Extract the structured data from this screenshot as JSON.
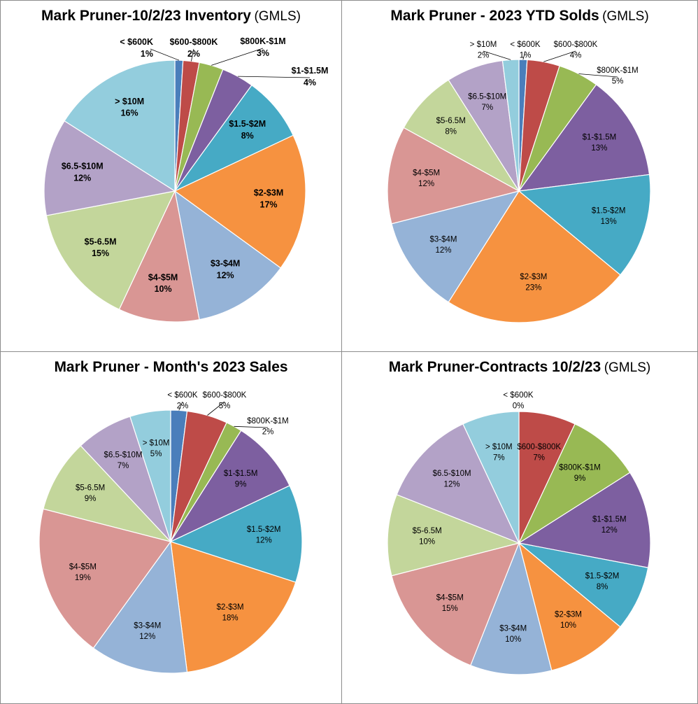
{
  "chart_data": [
    {
      "type": "pie",
      "title": "Mark Pruner-10/2/23 Inventory",
      "subtitle": "(GMLS)",
      "label_weight": "bold",
      "slices": [
        {
          "label": "< $600K",
          "value": 1,
          "pct": "1%",
          "color": "#4A7EBB"
        },
        {
          "label": "$600-$800K",
          "value": 2,
          "pct": "2%",
          "color": "#BE4B48"
        },
        {
          "label": "$800K-$1M",
          "value": 3,
          "pct": "3%",
          "color": "#98B954"
        },
        {
          "label": "$1-$1.5M",
          "value": 4,
          "pct": "4%",
          "color": "#7D5FA0"
        },
        {
          "label": "$1.5-$2M",
          "value": 8,
          "pct": "8%",
          "color": "#46AAC5"
        },
        {
          "label": "$2-$3M",
          "value": 17,
          "pct": "17%",
          "color": "#F69240"
        },
        {
          "label": "$3-$4M",
          "value": 12,
          "pct": "12%",
          "color": "#95B3D7"
        },
        {
          "label": "$4-$5M",
          "value": 10,
          "pct": "10%",
          "color": "#D99694"
        },
        {
          "label": "$5-6.5M",
          "value": 15,
          "pct": "15%",
          "color": "#C3D69B"
        },
        {
          "label": "$6.5-$10M",
          "value": 12,
          "pct": "12%",
          "color": "#B3A2C7"
        },
        {
          "label": "> $10M",
          "value": 16,
          "pct": "16%",
          "color": "#93CDDD"
        }
      ]
    },
    {
      "type": "pie",
      "title": "Mark Pruner - 2023 YTD Solds",
      "subtitle": "(GMLS)",
      "label_weight": "normal",
      "slices": [
        {
          "label": "< $600K",
          "value": 1,
          "pct": "1%",
          "color": "#4A7EBB"
        },
        {
          "label": "$600-$800K",
          "value": 4,
          "pct": "4%",
          "color": "#BE4B48"
        },
        {
          "label": "$800K-$1M",
          "value": 5,
          "pct": "5%",
          "color": "#98B954"
        },
        {
          "label": "$1-$1.5M",
          "value": 13,
          "pct": "13%",
          "color": "#7D5FA0"
        },
        {
          "label": "$1.5-$2M",
          "value": 13,
          "pct": "13%",
          "color": "#46AAC5"
        },
        {
          "label": "$2-$3M",
          "value": 23,
          "pct": "23%",
          "color": "#F69240"
        },
        {
          "label": "$3-$4M",
          "value": 12,
          "pct": "12%",
          "color": "#95B3D7"
        },
        {
          "label": "$4-$5M",
          "value": 12,
          "pct": "12%",
          "color": "#D99694"
        },
        {
          "label": "$5-6.5M",
          "value": 8,
          "pct": "8%",
          "color": "#C3D69B"
        },
        {
          "label": "$6.5-$10M",
          "value": 7,
          "pct": "7%",
          "color": "#B3A2C7"
        },
        {
          "label": "> $10M",
          "value": 2,
          "pct": "2%",
          "color": "#93CDDD"
        }
      ]
    },
    {
      "type": "pie",
      "title": "Mark Pruner - Month's 2023 Sales",
      "subtitle": "",
      "label_weight": "normal",
      "slices": [
        {
          "label": "< $600K",
          "value": 2,
          "pct": "2%",
          "color": "#4A7EBB"
        },
        {
          "label": "$600-$800K",
          "value": 5,
          "pct": "5%",
          "color": "#BE4B48"
        },
        {
          "label": "$800K-$1M",
          "value": 2,
          "pct": "2%",
          "color": "#98B954"
        },
        {
          "label": "$1-$1.5M",
          "value": 9,
          "pct": "9%",
          "color": "#7D5FA0"
        },
        {
          "label": "$1.5-$2M",
          "value": 12,
          "pct": "12%",
          "color": "#46AAC5"
        },
        {
          "label": "$2-$3M",
          "value": 18,
          "pct": "18%",
          "color": "#F69240"
        },
        {
          "label": "$3-$4M",
          "value": 12,
          "pct": "12%",
          "color": "#95B3D7"
        },
        {
          "label": "$4-$5M",
          "value": 19,
          "pct": "19%",
          "color": "#D99694"
        },
        {
          "label": "$5-6.5M",
          "value": 9,
          "pct": "9%",
          "color": "#C3D69B"
        },
        {
          "label": "$6.5-$10M",
          "value": 7,
          "pct": "7%",
          "color": "#B3A2C7"
        },
        {
          "label": "> $10M",
          "value": 5,
          "pct": "5%",
          "color": "#93CDDD"
        }
      ]
    },
    {
      "type": "pie",
      "title": "Mark Pruner-Contracts 10/2/23",
      "subtitle": "(GMLS)",
      "label_weight": "normal",
      "slices": [
        {
          "label": "< $600K",
          "value": 0,
          "pct": "0%",
          "color": "#4A7EBB"
        },
        {
          "label": "$600-$800K",
          "value": 7,
          "pct": "7%",
          "color": "#BE4B48"
        },
        {
          "label": "$800K-$1M",
          "value": 9,
          "pct": "9%",
          "color": "#98B954"
        },
        {
          "label": "$1-$1.5M",
          "value": 12,
          "pct": "12%",
          "color": "#7D5FA0"
        },
        {
          "label": "$1.5-$2M",
          "value": 8,
          "pct": "8%",
          "color": "#46AAC5"
        },
        {
          "label": "$2-$3M",
          "value": 10,
          "pct": "10%",
          "color": "#F69240"
        },
        {
          "label": "$3-$4M",
          "value": 10,
          "pct": "10%",
          "color": "#95B3D7"
        },
        {
          "label": "$4-$5M",
          "value": 15,
          "pct": "15%",
          "color": "#D99694"
        },
        {
          "label": "$5-6.5M",
          "value": 10,
          "pct": "10%",
          "color": "#C3D69B"
        },
        {
          "label": "$6.5-$10M",
          "value": 12,
          "pct": "12%",
          "color": "#B3A2C7"
        },
        {
          "label": "> $10M",
          "value": 7,
          "pct": "7%",
          "color": "#93CDDD"
        }
      ]
    }
  ]
}
